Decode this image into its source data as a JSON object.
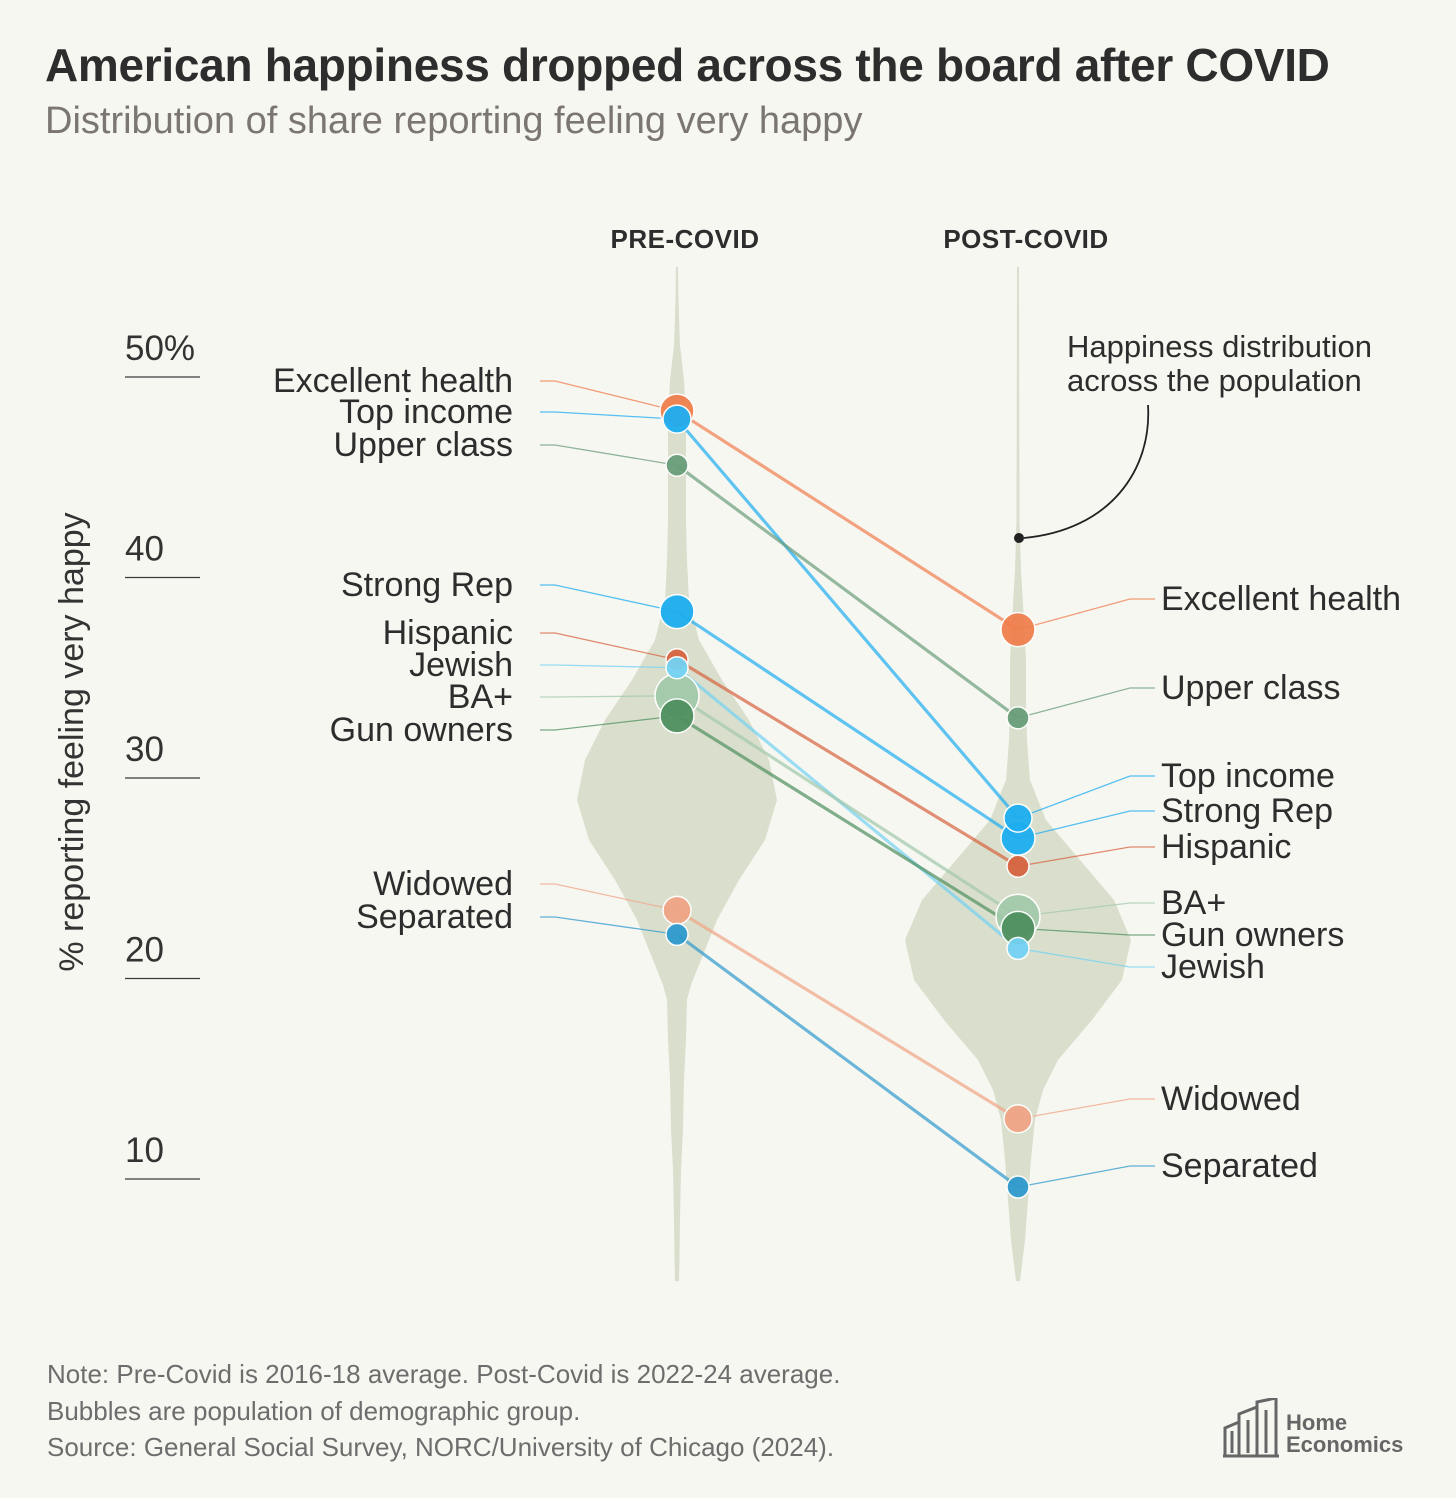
{
  "title": "American happiness dropped across the board after COVID",
  "subtitle": "Distribution of share reporting feeling very happy",
  "chart_data": {
    "type": "violin-slope",
    "columns": [
      "PRE-COVID",
      "POST-COVID"
    ],
    "ylabel": "% reporting feeling very happy",
    "yticks": [
      {
        "value": 50,
        "label": "50%"
      },
      {
        "value": 40,
        "label": "40"
      },
      {
        "value": 30,
        "label": "30"
      },
      {
        "value": 20,
        "label": "20"
      },
      {
        "value": 10,
        "label": "10"
      }
    ],
    "ylim": [
      4.9,
      55.5
    ],
    "annotation": [
      "Happiness distribution",
      "across the population"
    ],
    "colors": {
      "orange": "#f07f4e",
      "blue": "#1eaef0",
      "sage": "#6a9e7a",
      "red": "#d7643f",
      "light_blue": "#74d2f3",
      "pale_sage": "#a3c9ab",
      "green": "#4f9060",
      "peach": "#f0a585",
      "steel_blue": "#2f9ace",
      "violin": "#dadfcd"
    },
    "series": [
      {
        "name": "Excellent health",
        "pre": 48.3,
        "post": 37.4,
        "size": "large",
        "color": "orange"
      },
      {
        "name": "Top income",
        "pre": 47.9,
        "post": 28.0,
        "size": "medium",
        "color": "blue"
      },
      {
        "name": "Upper class",
        "pre": 45.6,
        "post": 33.0,
        "size": "small",
        "color": "sage"
      },
      {
        "name": "Strong Rep",
        "pre": 38.3,
        "post": 27.0,
        "size": "large",
        "color": "blue"
      },
      {
        "name": "Hispanic",
        "pre": 35.9,
        "post": 25.6,
        "size": "small",
        "color": "red"
      },
      {
        "name": "Jewish",
        "pre": 35.5,
        "post": 21.5,
        "size": "small",
        "color": "light_blue"
      },
      {
        "name": "BA+",
        "pre": 34.1,
        "post": 23.1,
        "size": "xlarge",
        "color": "pale_sage"
      },
      {
        "name": "Gun owners",
        "pre": 33.1,
        "post": 22.5,
        "size": "large",
        "color": "green"
      },
      {
        "name": "Widowed",
        "pre": 23.4,
        "post": 13.0,
        "size": "medium",
        "color": "peach"
      },
      {
        "name": "Separated",
        "pre": 22.2,
        "post": 9.6,
        "size": "small",
        "color": "steel_blue"
      }
    ]
  },
  "notes": [
    "Note: Pre-Covid is 2016-18 average. Post-Covid is 2022-24 average.",
    "Bubbles are population of demographic group.",
    "Source: General Social Survey, NORC/University of Chicago (2024)."
  ],
  "logo": {
    "line1": "Home",
    "line2": "Economics"
  }
}
